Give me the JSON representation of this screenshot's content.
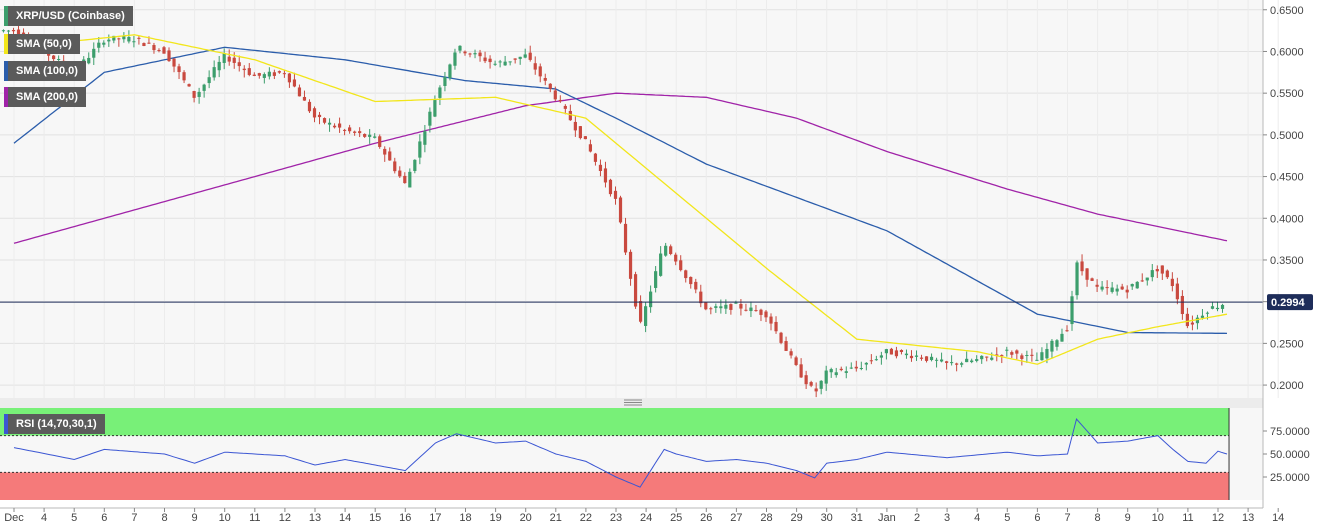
{
  "chart_data": {
    "type": "candlestick",
    "title": "XRP/USD (Coinbase)",
    "current_price_label": "0.2994",
    "current_price": 0.2994,
    "colors": {
      "up": "#3c9e6c",
      "down": "#c9493f",
      "sma50": "#f2e61b",
      "sma100": "#2b5dab",
      "sma200": "#a023a8",
      "rsi_line": "#3b56d3",
      "rsi_overbought": "#78f078",
      "rsi_oversold": "#f57a7a",
      "price_line": "#1e2d5a"
    },
    "y_axis": {
      "ticks": [
        "0.6500",
        "0.6000",
        "0.5500",
        "0.5000",
        "0.4500",
        "0.4000",
        "0.3500",
        "0.3000",
        "0.2500",
        "0.2000"
      ],
      "ylim": [
        0.1845,
        0.6617
      ]
    },
    "x_axis": {
      "ticks": [
        "Dec",
        "4",
        "5",
        "6",
        "7",
        "8",
        "9",
        "10",
        "11",
        "12",
        "13",
        "14",
        "15",
        "16",
        "17",
        "18",
        "19",
        "20",
        "21",
        "22",
        "23",
        "24",
        "25",
        "26",
        "27",
        "28",
        "29",
        "30",
        "31",
        "Jan",
        "2",
        "3",
        "4",
        "5",
        "6",
        "7",
        "8",
        "9",
        "10",
        "11",
        "12",
        "13",
        "14"
      ]
    },
    "legend": [
      {
        "label": "SMA (50,0)",
        "color": "#f2e61b"
      },
      {
        "label": "SMA (100,0)",
        "color": "#2b5dab"
      },
      {
        "label": "SMA (200,0)",
        "color": "#a023a8"
      }
    ],
    "price_keypoints": [
      [
        "Dec 3",
        0.625
      ],
      [
        "Dec 4",
        0.6
      ],
      [
        "Dec 5",
        0.575
      ],
      [
        "Dec 6",
        0.615
      ],
      [
        "Dec 7",
        0.615
      ],
      [
        "Dec 8",
        0.6
      ],
      [
        "Dec 9",
        0.545
      ],
      [
        "Dec 10",
        0.595
      ],
      [
        "Dec 11",
        0.57
      ],
      [
        "Dec 12",
        0.575
      ],
      [
        "Dec 13",
        0.52
      ],
      [
        "Dec 14",
        0.505
      ],
      [
        "Dec 15",
        0.495
      ],
      [
        "Dec 16",
        0.44
      ],
      [
        "Dec 17",
        0.545
      ],
      [
        "Dec 17.7",
        0.605
      ],
      [
        "Dec 19",
        0.585
      ],
      [
        "Dec 20",
        0.595
      ],
      [
        "Dec 21",
        0.545
      ],
      [
        "Dec 22",
        0.49
      ],
      [
        "Dec 23",
        0.42
      ],
      [
        "Dec 23.8",
        0.27
      ],
      [
        "Dec 24.6",
        0.37
      ],
      [
        "Dec 25",
        0.35
      ],
      [
        "Dec 26",
        0.29
      ],
      [
        "Dec 27",
        0.295
      ],
      [
        "Dec 28",
        0.285
      ],
      [
        "Dec 29",
        0.22
      ],
      [
        "Dec 29.6",
        0.19
      ],
      [
        "Dec 30",
        0.215
      ],
      [
        "Dec 31",
        0.22
      ],
      [
        "Jan 1",
        0.24
      ],
      [
        "Jan 2",
        0.235
      ],
      [
        "Jan 3",
        0.225
      ],
      [
        "Jan 4",
        0.23
      ],
      [
        "Jan 5",
        0.24
      ],
      [
        "Jan 6",
        0.23
      ],
      [
        "Jan 7",
        0.27
      ],
      [
        "Jan 7.3",
        0.345
      ],
      [
        "Jan 8",
        0.315
      ],
      [
        "Jan 9",
        0.315
      ],
      [
        "Jan 10",
        0.34
      ],
      [
        "Jan 10.5",
        0.32
      ],
      [
        "Jan 11",
        0.27
      ],
      [
        "Jan 11.6",
        0.29
      ],
      [
        "Jan 12.3",
        0.2994
      ]
    ],
    "sma50": [
      [
        "Dec 3",
        0.605
      ],
      [
        "Dec 7",
        0.62
      ],
      [
        "Dec 11",
        0.59
      ],
      [
        "Dec 15",
        0.54
      ],
      [
        "Dec 19",
        0.545
      ],
      [
        "Dec 22",
        0.52
      ],
      [
        "Dec 25",
        0.43
      ],
      [
        "Dec 28",
        0.34
      ],
      [
        "Dec 31",
        0.255
      ],
      [
        "Jan 4",
        0.24
      ],
      [
        "Jan 6",
        0.225
      ],
      [
        "Jan 8",
        0.255
      ],
      [
        "Jan 10",
        0.27
      ],
      [
        "Jan 12.3",
        0.285
      ]
    ],
    "sma100": [
      [
        "Dec 3",
        0.49
      ],
      [
        "Dec 6",
        0.575
      ],
      [
        "Dec 10",
        0.605
      ],
      [
        "Dec 14",
        0.59
      ],
      [
        "Dec 18",
        0.565
      ],
      [
        "Dec 21",
        0.555
      ],
      [
        "Dec 23",
        0.52
      ],
      [
        "Dec 26",
        0.465
      ],
      [
        "Jan 1",
        0.385
      ],
      [
        "Jan 6",
        0.285
      ],
      [
        "Jan 9",
        0.263
      ],
      [
        "Jan 12.3",
        0.262
      ]
    ],
    "sma200": [
      [
        "Dec 3",
        0.37
      ],
      [
        "Dec 8",
        0.42
      ],
      [
        "Dec 15",
        0.49
      ],
      [
        "Dec 20",
        0.535
      ],
      [
        "Dec 23",
        0.55
      ],
      [
        "Dec 26",
        0.545
      ],
      [
        "Dec 29",
        0.52
      ],
      [
        "Jan 1",
        0.48
      ],
      [
        "Jan 5",
        0.435
      ],
      [
        "Jan 8",
        0.405
      ],
      [
        "Jan 12.3",
        0.373
      ]
    ],
    "rsi": {
      "label": "RSI (14,70,30,1)",
      "ticks": [
        "75.0000",
        "50.0000",
        "25.0000"
      ],
      "ylim": [
        0,
        100
      ],
      "overbought": 70,
      "oversold": 30,
      "values": [
        [
          "Dec 3",
          57
        ],
        [
          "Dec 5",
          44
        ],
        [
          "Dec 6",
          55
        ],
        [
          "Dec 8",
          50
        ],
        [
          "Dec 9",
          40
        ],
        [
          "Dec 10",
          52
        ],
        [
          "Dec 12",
          48
        ],
        [
          "Dec 13",
          38
        ],
        [
          "Dec 14",
          44
        ],
        [
          "Dec 15",
          38
        ],
        [
          "Dec 16",
          32
        ],
        [
          "Dec 17",
          62
        ],
        [
          "Dec 17.7",
          72
        ],
        [
          "Dec 19",
          62
        ],
        [
          "Dec 20",
          64
        ],
        [
          "Dec 21",
          50
        ],
        [
          "Dec 22",
          42
        ],
        [
          "Dec 23",
          25
        ],
        [
          "Dec 23.8",
          14
        ],
        [
          "Dec 24.6",
          55
        ],
        [
          "Dec 25",
          50
        ],
        [
          "Dec 26",
          42
        ],
        [
          "Dec 27",
          44
        ],
        [
          "Dec 28",
          40
        ],
        [
          "Dec 29",
          32
        ],
        [
          "Dec 29.6",
          24
        ],
        [
          "Dec 30",
          40
        ],
        [
          "Dec 31",
          44
        ],
        [
          "Jan 1",
          52
        ],
        [
          "Jan 3",
          46
        ],
        [
          "Jan 5",
          52
        ],
        [
          "Jan 6",
          48
        ],
        [
          "Jan 7",
          50
        ],
        [
          "Jan 7.3",
          88
        ],
        [
          "Jan 8",
          62
        ],
        [
          "Jan 9",
          64
        ],
        [
          "Jan 10",
          70
        ],
        [
          "Jan 10.5",
          55
        ],
        [
          "Jan 11",
          42
        ],
        [
          "Jan 11.6",
          40
        ],
        [
          "Jan 12",
          53
        ],
        [
          "Jan 12.3",
          50
        ]
      ]
    }
  }
}
